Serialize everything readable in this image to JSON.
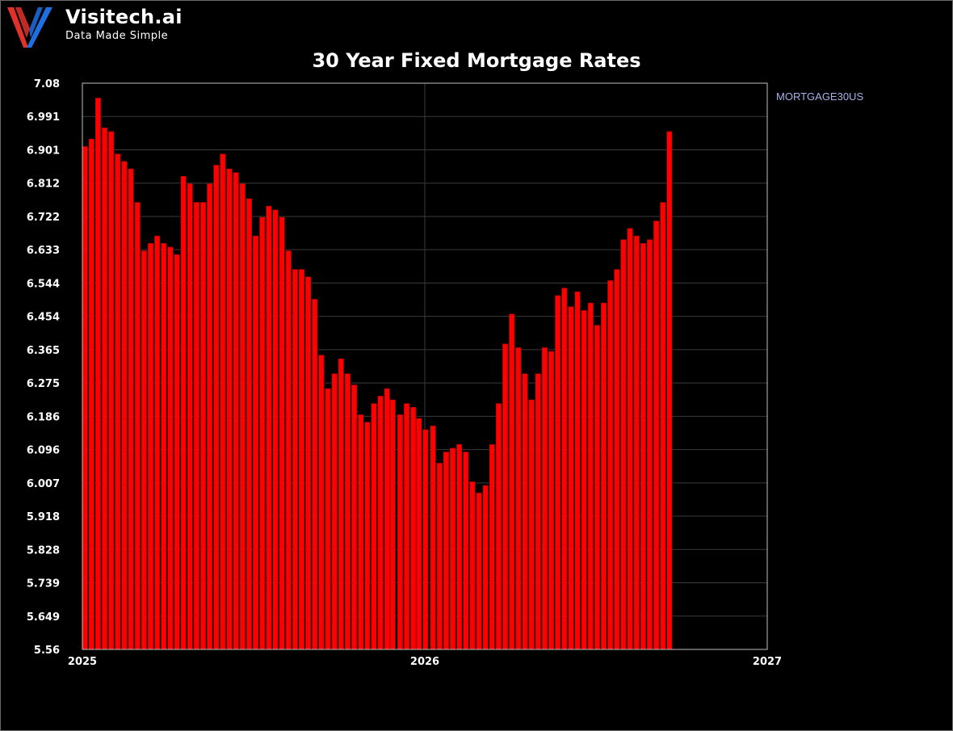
{
  "brand": {
    "name": "Visitech.ai",
    "tagline": "Data Made Simple",
    "logo_colors": [
      "#e0312b",
      "#1f6fe0"
    ]
  },
  "colors": {
    "background": "#000000",
    "bar": "#ff0000",
    "bar_edge": "#b00000",
    "grid": "#3a3a3a",
    "text": "#ffffff",
    "legend_text": "#aab0e8"
  },
  "chart_data": {
    "type": "bar",
    "title": "30 Year Fixed Mortgage Rates",
    "xlabel": "",
    "ylabel": "",
    "legend": {
      "entries": [
        "MORTGAGE30US"
      ],
      "placement": "right"
    },
    "grid": true,
    "ylim": [
      5.56,
      7.08
    ],
    "xlim": [
      "2025-01-01",
      "2027-01-01"
    ],
    "yticks": [
      "7.08",
      "6.991",
      "6.901",
      "6.812",
      "6.722",
      "6.633",
      "6.544",
      "6.454",
      "6.365",
      "6.275",
      "6.186",
      "6.096",
      "6.007",
      "5.918",
      "5.828",
      "5.739",
      "5.649",
      "5.56"
    ],
    "xticks": [
      "2025",
      "2026",
      "2027"
    ],
    "series": [
      {
        "name": "MORTGAGE30US",
        "x": [
          "2025-01-02",
          "2025-01-09",
          "2025-01-16",
          "2025-01-23",
          "2025-01-30",
          "2025-02-06",
          "2025-02-13",
          "2025-02-20",
          "2025-02-27",
          "2025-03-06",
          "2025-03-13",
          "2025-03-20",
          "2025-03-27",
          "2025-04-03",
          "2025-04-10",
          "2025-04-17",
          "2025-04-24",
          "2025-05-01",
          "2025-05-08",
          "2025-05-15",
          "2025-05-22",
          "2025-05-29",
          "2025-06-05",
          "2025-06-12",
          "2025-06-19",
          "2025-06-26",
          "2025-07-03",
          "2025-07-10",
          "2025-07-17",
          "2025-07-24",
          "2025-07-31",
          "2025-08-07",
          "2025-08-14",
          "2025-08-21",
          "2025-08-28",
          "2025-09-04",
          "2025-09-11",
          "2025-09-18",
          "2025-09-25",
          "2025-10-02",
          "2025-10-09",
          "2025-10-16",
          "2025-10-23",
          "2025-10-30",
          "2025-11-06",
          "2025-11-13",
          "2025-11-20",
          "2025-11-26",
          "2025-12-04",
          "2025-12-11",
          "2025-12-18",
          "2025-12-24",
          "2025-12-31",
          "2026-01-08",
          "2026-01-15",
          "2026-01-22",
          "2026-01-29",
          "2026-02-05",
          "2026-02-12",
          "2026-02-19",
          "2026-02-26",
          "2026-03-05",
          "2026-03-12",
          "2026-03-19",
          "2026-03-26",
          "2026-04-02",
          "2026-04-09",
          "2026-04-16",
          "2026-04-23",
          "2026-04-30",
          "2026-05-07",
          "2026-05-14",
          "2026-05-21",
          "2026-05-28",
          "2026-06-04",
          "2026-06-11",
          "2026-06-18",
          "2026-06-25",
          "2026-07-02",
          "2026-07-09",
          "2026-07-16",
          "2026-07-23",
          "2026-07-30",
          "2026-08-06",
          "2026-08-13",
          "2026-08-20",
          "2026-08-27",
          "2026-09-03",
          "2026-09-10",
          "2026-09-17"
        ],
        "values": [
          6.91,
          6.93,
          7.04,
          6.96,
          6.95,
          6.89,
          6.87,
          6.85,
          6.76,
          6.63,
          6.65,
          6.67,
          6.65,
          6.64,
          6.62,
          6.83,
          6.81,
          6.76,
          6.76,
          6.81,
          6.86,
          6.89,
          6.85,
          6.84,
          6.81,
          6.77,
          6.67,
          6.72,
          6.75,
          6.74,
          6.72,
          6.63,
          6.58,
          6.58,
          6.56,
          6.5,
          6.35,
          6.26,
          6.3,
          6.34,
          6.3,
          6.27,
          6.19,
          6.17,
          6.22,
          6.24,
          6.26,
          6.23,
          6.19,
          6.22,
          6.21,
          6.18,
          6.15,
          6.16,
          6.06,
          6.09,
          6.1,
          6.11,
          6.09,
          6.01,
          5.98,
          6.0,
          6.11,
          6.22,
          6.38,
          6.46,
          6.37,
          6.3,
          6.23,
          6.3,
          6.37,
          6.36,
          6.51,
          6.53,
          6.48,
          6.52,
          6.47,
          6.49,
          6.43,
          6.49,
          6.55,
          6.58,
          6.66,
          6.69,
          6.67,
          6.65,
          6.66,
          6.71,
          6.76,
          6.95
        ]
      }
    ]
  }
}
